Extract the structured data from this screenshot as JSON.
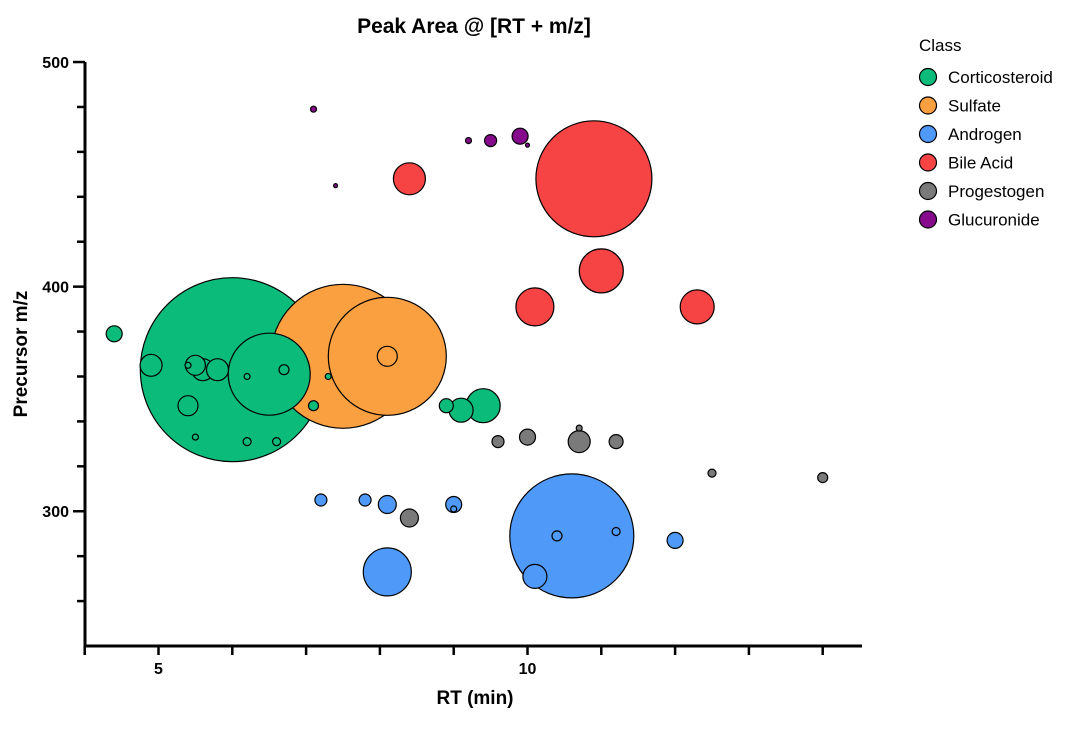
{
  "chart_data": {
    "type": "scatter",
    "subtype": "bubble",
    "title": "Peak Area @ [RT + m/z]",
    "xlabel": "RT (min)",
    "ylabel": "Precursor m/z",
    "xlim": [
      4.0,
      14.5
    ],
    "ylim": [
      240,
      500
    ],
    "x_ticks": [
      5,
      10
    ],
    "x_minor_ticks": [
      4,
      5,
      6,
      7,
      8,
      9,
      10,
      11,
      12,
      13,
      14
    ],
    "y_ticks": [
      300,
      400,
      500
    ],
    "y_minor_ticks": [
      260,
      280,
      300,
      320,
      340,
      360,
      380,
      400,
      420,
      440,
      460,
      480,
      500
    ],
    "legend": {
      "title": "Class",
      "position": "top-right"
    },
    "series": [
      {
        "name": "Corticosteroid",
        "color": "#0bbb7a",
        "points": [
          {
            "x": 6.0,
            "y": 363,
            "size": 92
          },
          {
            "x": 6.5,
            "y": 361,
            "size": 41
          },
          {
            "x": 4.4,
            "y": 379,
            "size": 8
          },
          {
            "x": 4.9,
            "y": 365,
            "size": 11
          },
          {
            "x": 5.4,
            "y": 365,
            "size": 3
          },
          {
            "x": 5.5,
            "y": 365,
            "size": 10
          },
          {
            "x": 5.6,
            "y": 363,
            "size": 11
          },
          {
            "x": 5.8,
            "y": 363,
            "size": 11
          },
          {
            "x": 5.4,
            "y": 347,
            "size": 10
          },
          {
            "x": 5.5,
            "y": 333,
            "size": 3
          },
          {
            "x": 6.2,
            "y": 360,
            "size": 3
          },
          {
            "x": 6.2,
            "y": 331,
            "size": 4
          },
          {
            "x": 6.7,
            "y": 363,
            "size": 5
          },
          {
            "x": 6.6,
            "y": 331,
            "size": 4
          },
          {
            "x": 7.1,
            "y": 347,
            "size": 5
          },
          {
            "x": 7.3,
            "y": 360,
            "size": 3
          },
          {
            "x": 8.9,
            "y": 347,
            "size": 7
          },
          {
            "x": 9.1,
            "y": 345,
            "size": 12
          },
          {
            "x": 9.4,
            "y": 347,
            "size": 17
          }
        ]
      },
      {
        "name": "Sulfate",
        "color": "#fba040",
        "points": [
          {
            "x": 7.5,
            "y": 369,
            "size": 72
          },
          {
            "x": 8.1,
            "y": 369,
            "size": 59
          },
          {
            "x": 8.1,
            "y": 369,
            "size": 10
          }
        ]
      },
      {
        "name": "Androgen",
        "color": "#4f9af8",
        "points": [
          {
            "x": 10.6,
            "y": 289,
            "size": 62
          },
          {
            "x": 8.1,
            "y": 273,
            "size": 24
          },
          {
            "x": 10.1,
            "y": 271,
            "size": 12
          },
          {
            "x": 7.2,
            "y": 305,
            "size": 6
          },
          {
            "x": 7.8,
            "y": 305,
            "size": 6
          },
          {
            "x": 8.1,
            "y": 303,
            "size": 9
          },
          {
            "x": 9.0,
            "y": 303,
            "size": 8
          },
          {
            "x": 9.0,
            "y": 301,
            "size": 3
          },
          {
            "x": 10.4,
            "y": 289,
            "size": 5
          },
          {
            "x": 11.2,
            "y": 291,
            "size": 4
          },
          {
            "x": 12.0,
            "y": 287,
            "size": 8
          }
        ]
      },
      {
        "name": "Bile Acid",
        "color": "#f64444",
        "points": [
          {
            "x": 10.9,
            "y": 448,
            "size": 58
          },
          {
            "x": 8.4,
            "y": 448,
            "size": 16
          },
          {
            "x": 11.0,
            "y": 407,
            "size": 22
          },
          {
            "x": 10.1,
            "y": 391,
            "size": 19
          },
          {
            "x": 12.3,
            "y": 391,
            "size": 17
          }
        ]
      },
      {
        "name": "Progestogen",
        "color": "#7a7a7a",
        "points": [
          {
            "x": 10.7,
            "y": 331,
            "size": 11
          },
          {
            "x": 10.0,
            "y": 333,
            "size": 8
          },
          {
            "x": 9.6,
            "y": 331,
            "size": 6
          },
          {
            "x": 11.2,
            "y": 331,
            "size": 7
          },
          {
            "x": 10.7,
            "y": 337,
            "size": 3
          },
          {
            "x": 8.4,
            "y": 297,
            "size": 9
          },
          {
            "x": 12.5,
            "y": 317,
            "size": 4
          },
          {
            "x": 14.0,
            "y": 315,
            "size": 5
          }
        ]
      },
      {
        "name": "Glucuronide",
        "color": "#850b8c",
        "points": [
          {
            "x": 9.9,
            "y": 467,
            "size": 8
          },
          {
            "x": 9.5,
            "y": 465,
            "size": 6
          },
          {
            "x": 9.2,
            "y": 465,
            "size": 3
          },
          {
            "x": 10.0,
            "y": 463,
            "size": 2
          },
          {
            "x": 7.1,
            "y": 479,
            "size": 3
          },
          {
            "x": 7.4,
            "y": 445,
            "size": 2
          }
        ]
      }
    ]
  }
}
